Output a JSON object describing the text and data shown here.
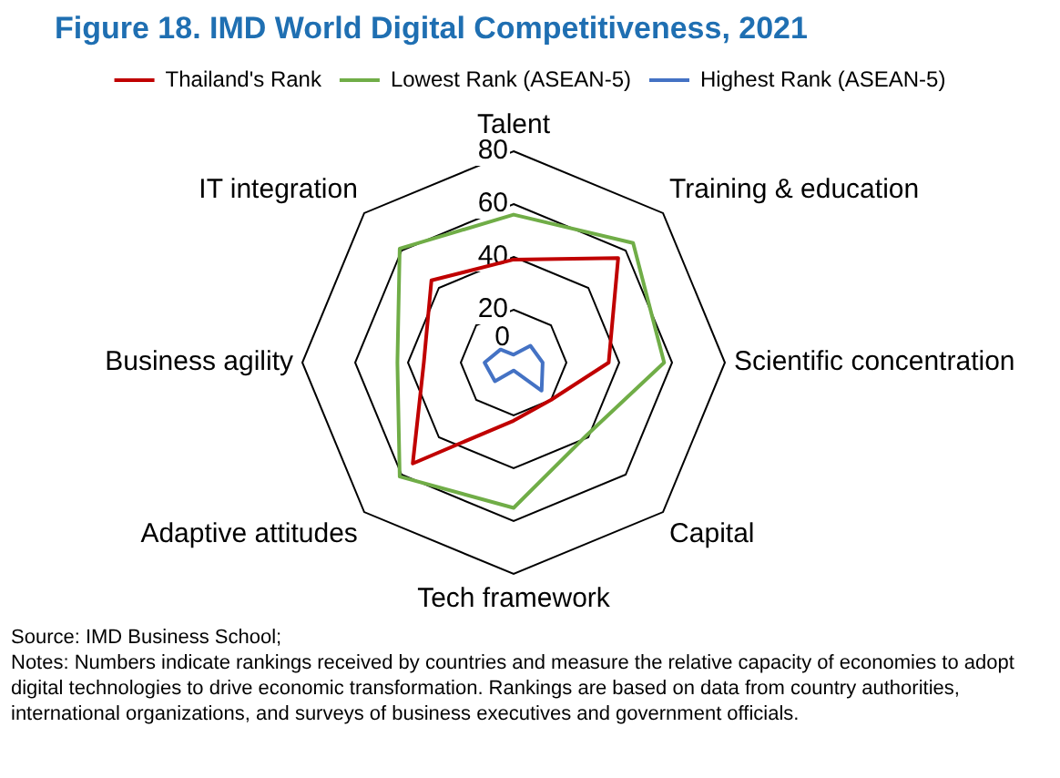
{
  "chart_data": {
    "type": "radar",
    "title": "Figure 18. IMD World Digital Competitiveness, 2021",
    "categories": [
      "Talent",
      "Training & education",
      "Scientific concentration",
      "Capital",
      "Tech framework",
      "Adaptive attitudes",
      "Business agility",
      "IT integration"
    ],
    "series": [
      {
        "name": "Thailand's Rank",
        "color": "#c00000",
        "values": [
          39,
          56,
          36,
          20,
          22,
          54,
          34,
          44
        ]
      },
      {
        "name": "Lowest Rank (ASEAN-5)",
        "color": "#70ad47",
        "values": [
          56,
          64,
          57,
          39,
          55,
          61,
          44,
          61
        ]
      },
      {
        "name": "Highest Rank (ASEAN-5)",
        "color": "#4472c4",
        "values": [
          3,
          9,
          11,
          15,
          3,
          10,
          11,
          7
        ]
      }
    ],
    "ylim": [
      0,
      80
    ],
    "yticks": [
      0,
      20,
      40,
      60,
      80
    ],
    "grid": true,
    "legend": "top",
    "marker": "none",
    "annotations": [
      "Source: IMD Business School;",
      "Notes: Numbers indicate rankings received by countries and measure the relative capacity of economies to adopt digital technologies to drive economic transformation. Rankings are based on data from country authorities, international organizations, and surveys of business executives and government officials."
    ]
  }
}
